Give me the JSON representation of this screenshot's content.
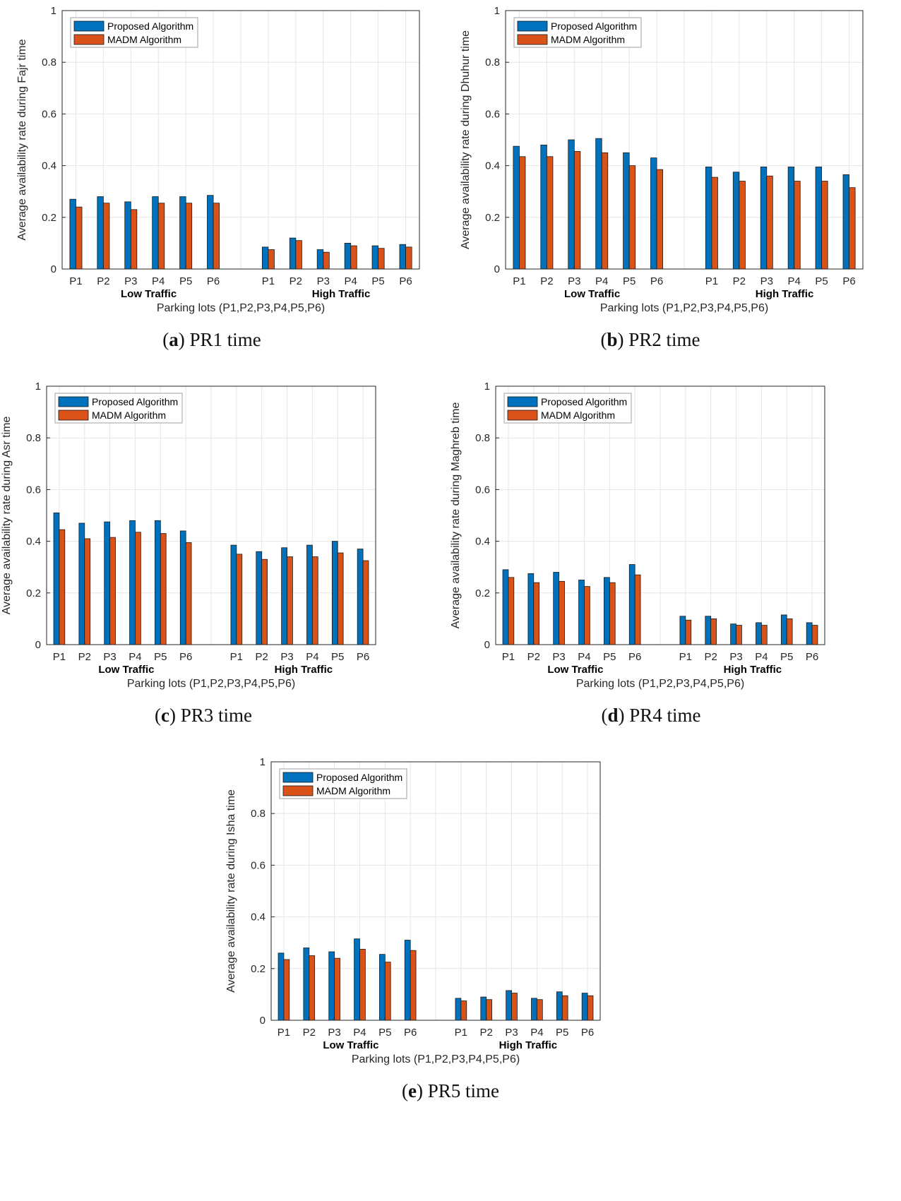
{
  "colors": {
    "proposed": "#0072BD",
    "madm": "#D95319",
    "grid": "#e6e6e6",
    "axis": "#262626"
  },
  "shared": {
    "xlabel": "Parking lots (P1,P2,P3,P4,P5,P6)",
    "groups": [
      "Low Traffic",
      "High Traffic"
    ],
    "tick_labels": [
      "P1",
      "P2",
      "P3",
      "P4",
      "P5",
      "P6"
    ],
    "y_ticks": [
      "0",
      "0.2",
      "0.4",
      "0.6",
      "0.8",
      "1"
    ],
    "legend": [
      "Proposed Algorithm",
      "MADM Algorithm"
    ]
  },
  "chart_data": [
    {
      "type": "bar",
      "caption_letter": "a",
      "caption_text": ") PR1 time",
      "ylabel": "Average availability rate during Fajr time",
      "ylim": [
        0,
        1
      ],
      "categories": [
        "P1",
        "P2",
        "P3",
        "P4",
        "P5",
        "P6",
        "P1",
        "P2",
        "P3",
        "P4",
        "P5",
        "P6"
      ],
      "series": [
        {
          "name": "Proposed Algorithm",
          "values": [
            0.27,
            0.28,
            0.26,
            0.28,
            0.28,
            0.285,
            0.085,
            0.12,
            0.075,
            0.1,
            0.09,
            0.095
          ]
        },
        {
          "name": "MADM Algorithm",
          "values": [
            0.24,
            0.255,
            0.23,
            0.255,
            0.255,
            0.255,
            0.075,
            0.11,
            0.065,
            0.09,
            0.08,
            0.085
          ]
        }
      ]
    },
    {
      "type": "bar",
      "caption_letter": "b",
      "caption_text": ") PR2 time",
      "ylabel": "Average availability rate during Dhuhur time",
      "ylim": [
        0,
        1
      ],
      "categories": [
        "P1",
        "P2",
        "P3",
        "P4",
        "P5",
        "P6",
        "P1",
        "P2",
        "P3",
        "P4",
        "P5",
        "P6"
      ],
      "series": [
        {
          "name": "Proposed Algorithm",
          "values": [
            0.475,
            0.48,
            0.5,
            0.505,
            0.45,
            0.43,
            0.395,
            0.375,
            0.395,
            0.395,
            0.395,
            0.365
          ]
        },
        {
          "name": "MADM Algorithm",
          "values": [
            0.435,
            0.435,
            0.455,
            0.45,
            0.4,
            0.385,
            0.355,
            0.34,
            0.36,
            0.34,
            0.34,
            0.315
          ]
        }
      ]
    },
    {
      "type": "bar",
      "caption_letter": "c",
      "caption_text": ") PR3 time",
      "ylabel": "Average availability rate during Asr time",
      "ylim": [
        0,
        1
      ],
      "categories": [
        "P1",
        "P2",
        "P3",
        "P4",
        "P5",
        "P6",
        "P1",
        "P2",
        "P3",
        "P4",
        "P5",
        "P6"
      ],
      "series": [
        {
          "name": "Proposed Algorithm",
          "values": [
            0.51,
            0.47,
            0.475,
            0.48,
            0.48,
            0.44,
            0.385,
            0.36,
            0.375,
            0.385,
            0.4,
            0.37
          ]
        },
        {
          "name": "MADM Algorithm",
          "values": [
            0.445,
            0.41,
            0.415,
            0.435,
            0.43,
            0.395,
            0.35,
            0.33,
            0.34,
            0.34,
            0.355,
            0.325
          ]
        }
      ]
    },
    {
      "type": "bar",
      "caption_letter": "d",
      "caption_text": ") PR4 time",
      "ylabel": "Average availability rate during Maghreb time",
      "ylim": [
        0,
        1
      ],
      "categories": [
        "P1",
        "P2",
        "P3",
        "P4",
        "P5",
        "P6",
        "P1",
        "P2",
        "P3",
        "P4",
        "P5",
        "P6"
      ],
      "series": [
        {
          "name": "Proposed Algorithm",
          "values": [
            0.29,
            0.275,
            0.28,
            0.25,
            0.26,
            0.31,
            0.11,
            0.11,
            0.08,
            0.085,
            0.115,
            0.085
          ]
        },
        {
          "name": "MADM Algorithm",
          "values": [
            0.26,
            0.24,
            0.245,
            0.225,
            0.24,
            0.27,
            0.095,
            0.1,
            0.075,
            0.075,
            0.1,
            0.075
          ]
        }
      ]
    },
    {
      "type": "bar",
      "caption_letter": "e",
      "caption_text": ") PR5 time",
      "ylabel": "Average availability rate during Isha time",
      "ylim": [
        0,
        1
      ],
      "categories": [
        "P1",
        "P2",
        "P3",
        "P4",
        "P5",
        "P6",
        "P1",
        "P2",
        "P3",
        "P4",
        "P5",
        "P6"
      ],
      "series": [
        {
          "name": "Proposed Algorithm",
          "values": [
            0.26,
            0.28,
            0.265,
            0.315,
            0.255,
            0.31,
            0.085,
            0.09,
            0.115,
            0.085,
            0.11,
            0.105
          ]
        },
        {
          "name": "MADM Algorithm",
          "values": [
            0.235,
            0.25,
            0.24,
            0.275,
            0.225,
            0.27,
            0.075,
            0.08,
            0.105,
            0.08,
            0.095,
            0.095
          ]
        }
      ]
    }
  ]
}
